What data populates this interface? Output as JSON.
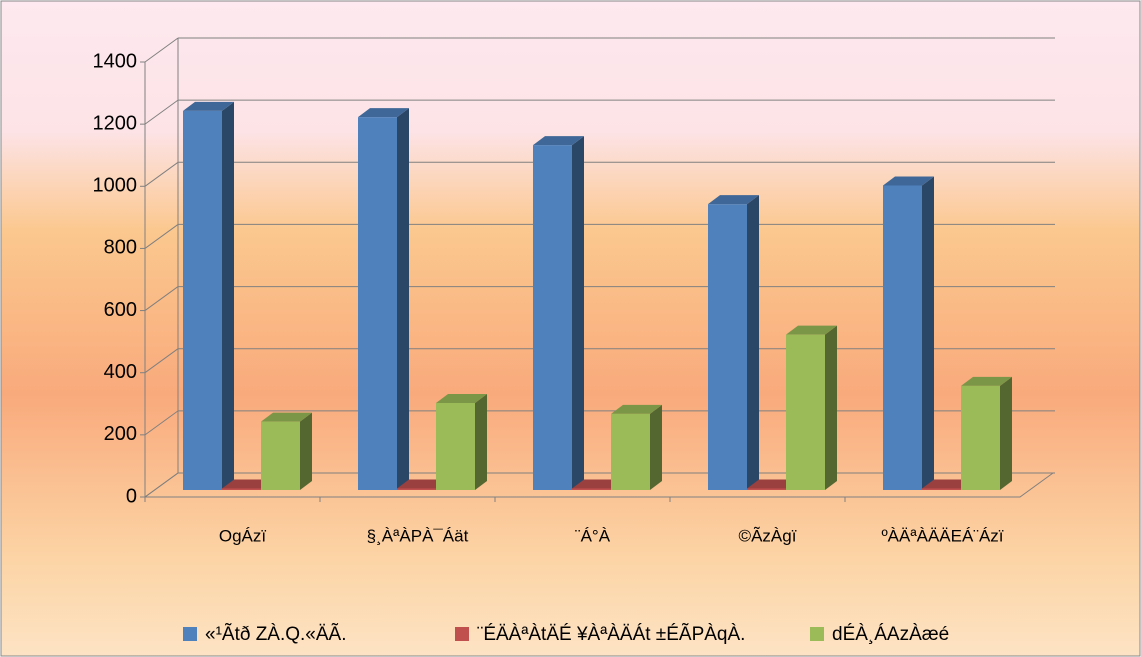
{
  "chart_data": {
    "type": "bar3d",
    "categories": [
      "OgÁzï",
      "§¸ÀªÀPÀ¯Áät",
      "¨Á°À",
      "©ÃzÀgï",
      "ºÀÄªÀÄÄEÁ¨Ázï"
    ],
    "series": [
      {
        "name": "«¹Ãtð ZÀ.Q.«ÄÃ.",
        "color": "#4f81bd",
        "values": [
          1220,
          1200,
          1110,
          920,
          980
        ]
      },
      {
        "name": "¨ÉÄÀªÀtÄÉ ¥ÀªÀÄÁt ±ÉÃPÀqÀ.",
        "color": "#c0504d",
        "values": [
          5,
          5,
          5,
          5,
          5
        ]
      },
      {
        "name": "dÉÀ¸ÁAzÀæé",
        "color": "#9bbb59",
        "values": [
          220,
          280,
          245,
          500,
          335
        ]
      }
    ],
    "ylim": [
      0,
      1400
    ],
    "yticks": [
      0,
      200,
      400,
      600,
      800,
      1000,
      1200,
      1400
    ],
    "grid": true,
    "legend": "bottom"
  }
}
